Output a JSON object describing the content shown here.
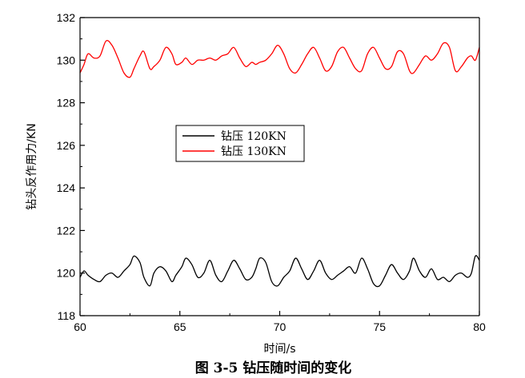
{
  "chart_data": {
    "type": "line",
    "title": "",
    "caption": "图 3-5  钻压随时间的变化",
    "xlabel": "时间/s",
    "ylabel": "钻头反作用力/KN",
    "xlim": [
      60,
      80
    ],
    "ylim": [
      118,
      132
    ],
    "xticks": [
      60,
      65,
      70,
      75,
      80
    ],
    "yticks": [
      118,
      120,
      122,
      124,
      126,
      128,
      130,
      132
    ],
    "grid": false,
    "legend_position": "center-left",
    "series": [
      {
        "name": "钻压  120KN",
        "color": "#000000",
        "x": [
          60,
          60.2,
          60.4,
          60.7,
          61,
          61.3,
          61.6,
          61.9,
          62.2,
          62.5,
          62.7,
          63,
          63.2,
          63.5,
          63.7,
          64,
          64.3,
          64.6,
          64.8,
          65.1,
          65.3,
          65.6,
          65.9,
          66.2,
          66.5,
          66.8,
          67.1,
          67.4,
          67.7,
          68,
          68.3,
          68.6,
          68.8,
          69,
          69.3,
          69.6,
          69.9,
          70.2,
          70.5,
          70.8,
          71.1,
          71.4,
          71.7,
          72,
          72.3,
          72.6,
          72.9,
          73.2,
          73.5,
          73.8,
          74.1,
          74.4,
          74.7,
          75,
          75.3,
          75.6,
          75.9,
          76.2,
          76.5,
          76.7,
          77,
          77.3,
          77.6,
          77.9,
          78.2,
          78.5,
          78.8,
          79.1,
          79.4,
          79.6,
          79.8,
          80
        ],
        "values": [
          119.8,
          120.1,
          119.9,
          119.7,
          119.6,
          119.9,
          120,
          119.8,
          120.1,
          120.4,
          120.8,
          120.5,
          119.8,
          119.4,
          120,
          120.3,
          120.1,
          119.6,
          119.9,
          120.3,
          120.7,
          120.4,
          119.8,
          120,
          120.6,
          119.9,
          119.6,
          120.1,
          120.6,
          120.2,
          119.7,
          119.8,
          120.2,
          120.7,
          120.5,
          119.6,
          119.4,
          119.8,
          120.1,
          120.7,
          120.2,
          119.7,
          120.1,
          120.6,
          120,
          119.7,
          119.9,
          120.1,
          120.3,
          120,
          120.7,
          120.2,
          119.5,
          119.4,
          119.9,
          120.4,
          120,
          119.7,
          120.1,
          120.7,
          120.1,
          119.8,
          120.2,
          119.7,
          119.8,
          119.6,
          119.9,
          120,
          119.8,
          120,
          120.8,
          120.6
        ]
      },
      {
        "name": "钻压  130KN",
        "color": "#ff0000",
        "x": [
          60,
          60.2,
          60.4,
          60.7,
          61,
          61.3,
          61.6,
          61.9,
          62.2,
          62.5,
          62.7,
          63,
          63.2,
          63.5,
          63.7,
          64,
          64.3,
          64.6,
          64.8,
          65.1,
          65.3,
          65.6,
          65.9,
          66.2,
          66.5,
          66.8,
          67.1,
          67.4,
          67.7,
          68,
          68.3,
          68.6,
          68.8,
          69,
          69.3,
          69.6,
          69.9,
          70.2,
          70.5,
          70.8,
          71.1,
          71.4,
          71.7,
          72,
          72.3,
          72.6,
          72.9,
          73.2,
          73.5,
          73.8,
          74.1,
          74.4,
          74.7,
          75,
          75.3,
          75.6,
          75.9,
          76.2,
          76.5,
          76.7,
          77,
          77.3,
          77.6,
          77.9,
          78.2,
          78.5,
          78.8,
          79.1,
          79.4,
          79.6,
          79.8,
          80
        ],
        "values": [
          129.4,
          129.8,
          130.3,
          130.1,
          130.2,
          130.9,
          130.7,
          130.1,
          129.4,
          129.2,
          129.6,
          130.2,
          130.4,
          129.6,
          129.7,
          130,
          130.6,
          130.3,
          129.8,
          129.9,
          130.1,
          129.8,
          130,
          130,
          130.1,
          130,
          130.2,
          130.3,
          130.6,
          130.1,
          129.7,
          129.9,
          129.8,
          129.9,
          130,
          130.3,
          130.7,
          130.3,
          129.6,
          129.4,
          129.8,
          130.3,
          130.6,
          130.1,
          129.5,
          129.7,
          130.4,
          130.6,
          130.1,
          129.6,
          129.5,
          130.3,
          130.6,
          130.1,
          129.6,
          129.7,
          130.4,
          130.3,
          129.5,
          129.4,
          129.8,
          130.2,
          130,
          130.3,
          130.8,
          130.6,
          129.5,
          129.7,
          130.1,
          130.2,
          130,
          130.6
        ]
      }
    ]
  }
}
